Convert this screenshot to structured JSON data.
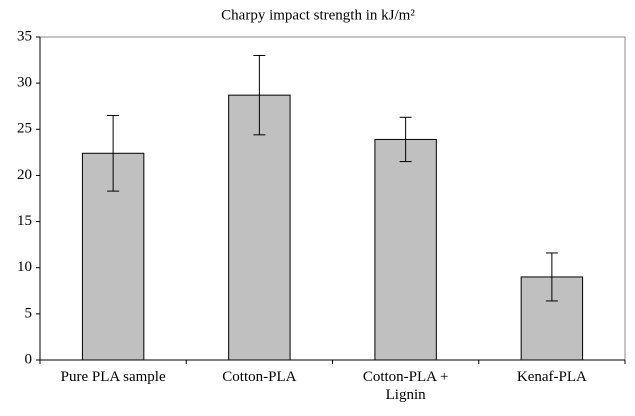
{
  "chart_data": {
    "type": "bar",
    "title": "Charpy impact strength in kJ/m²",
    "categories": [
      "Pure PLA sample",
      "Cotton-PLA",
      "Cotton-PLA + Lignin",
      "Kenaf-PLA"
    ],
    "values": [
      22.4,
      28.7,
      23.9,
      9.0
    ],
    "errors": [
      4.1,
      4.3,
      2.4,
      2.6
    ],
    "color": "#c0c0c0",
    "ylim": [
      0,
      35
    ],
    "yticks": [
      0,
      5,
      10,
      15,
      20,
      25,
      30,
      35
    ],
    "grid": false
  }
}
